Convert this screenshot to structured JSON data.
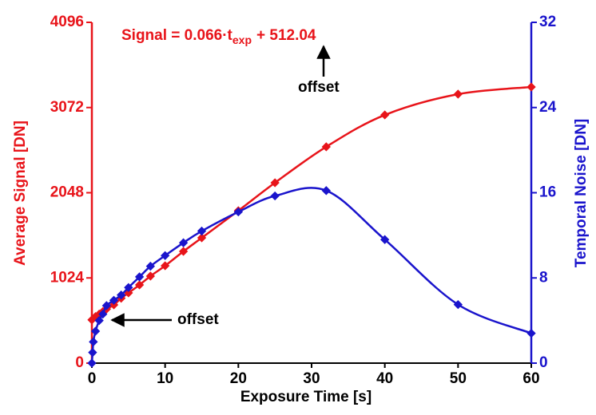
{
  "chart_data": {
    "type": "line",
    "equation": {
      "prefix": "Signal = 0.066·t",
      "subscript": "exp",
      "suffix": "+ 512.04"
    },
    "annotations": [
      "offset",
      "offset"
    ],
    "x_label": "Exposure Time [s]",
    "y_label": "Average Signal [DN]",
    "y2_label": "Temporal Noise [DN]",
    "xlim": [
      0,
      60
    ],
    "xticks": [
      0,
      10,
      20,
      30,
      40,
      50,
      60
    ],
    "ylim": [
      0,
      4096
    ],
    "yticks": [
      0,
      1024,
      2048,
      3072,
      4096
    ],
    "y2lim": [
      0,
      32
    ],
    "y2ticks": [
      0,
      8,
      16,
      24,
      32
    ],
    "y_color": "#e8141a",
    "y2_color": "#1a14cc",
    "series": [
      {
        "name": "Average Signal",
        "color": "#e8141a",
        "axis": "y",
        "x": [
          0,
          0.5,
          1,
          1.5,
          2,
          3,
          4,
          5,
          6.5,
          8,
          10,
          12.5,
          15,
          20,
          25,
          32,
          40,
          50,
          60
        ],
        "values": [
          520,
          560,
          590,
          620,
          650,
          700,
          780,
          844,
          940,
          1046,
          1170,
          1343,
          1506,
          1832,
          2168,
          2600,
          2983,
          3233,
          3319
        ]
      },
      {
        "name": "Temporal Noise",
        "color": "#1a14cc",
        "axis": "y2",
        "x": [
          0,
          0.1,
          0.2,
          0.5,
          1,
          1.5,
          2,
          3,
          4,
          5,
          6.5,
          8,
          10,
          12.5,
          15,
          20,
          25,
          32,
          40,
          50,
          60
        ],
        "values": [
          0,
          1,
          2,
          3,
          4,
          4.6,
          5.4,
          5.9,
          6.4,
          7.1,
          8.1,
          9.1,
          10.1,
          11.3,
          12.4,
          14.2,
          15.7,
          16.2,
          11.6,
          5.5,
          2.8
        ]
      }
    ]
  }
}
